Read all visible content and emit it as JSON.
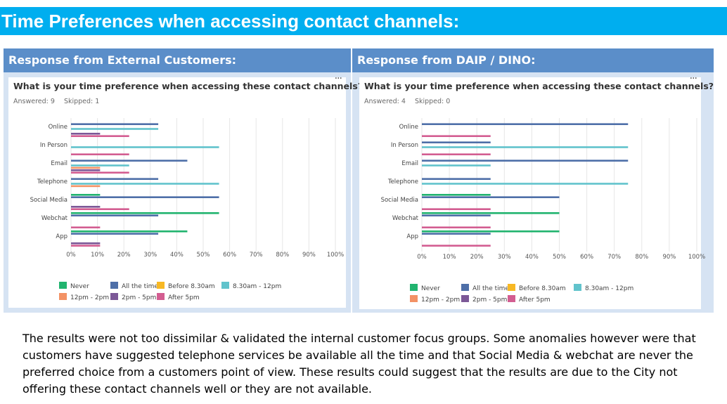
{
  "slide": {
    "title": "Time Preferences when accessing contact channels:",
    "left_header": "Response from External Customers:",
    "right_header": "Response from DAIP / DINO:",
    "summary": "The results were not too dissimilar & validated the internal customer focus groups. Some anomalies however were that customers have suggested telephone services be available all the time and that Social Media & webchat are never the preferred choice from a customers point of view.  These results could suggest that the results are due to the City not offering these contact channels well or they are not available."
  },
  "menu_glyph": "···",
  "chart_data": [
    {
      "type": "bar",
      "orientation": "horizontal",
      "title": "What is your time preference when accessing these contact channels?",
      "answered": "Answered: 9",
      "skipped": "Skipped: 1",
      "categories": [
        "Online",
        "In Person",
        "Email",
        "Telephone",
        "Social Media",
        "Webchat",
        "App"
      ],
      "x_ticks": [
        "0%",
        "10%",
        "20%",
        "30%",
        "40%",
        "50%",
        "60%",
        "70%",
        "80%",
        "90%",
        "100%"
      ],
      "xlim": [
        0,
        100
      ],
      "grid": true,
      "legend_position": "bottom",
      "series": [
        {
          "name": "Never",
          "color": "#21b46f",
          "values": [
            0,
            0,
            0,
            0,
            11,
            56,
            44
          ]
        },
        {
          "name": "All the time",
          "color": "#4e6fa8",
          "values": [
            33,
            0,
            44,
            33,
            56,
            33,
            33
          ]
        },
        {
          "name": "Before 8.30am",
          "color": "#f7b824",
          "values": [
            0,
            0,
            0,
            0,
            0,
            0,
            0
          ]
        },
        {
          "name": "8.30am - 12pm",
          "color": "#61c3cc",
          "values": [
            33,
            56,
            22,
            56,
            0,
            0,
            0
          ]
        },
        {
          "name": "12pm - 2pm",
          "color": "#f39265",
          "values": [
            0,
            0,
            11,
            11,
            0,
            0,
            0
          ]
        },
        {
          "name": "2pm - 5pm",
          "color": "#7c5897",
          "values": [
            11,
            0,
            11,
            0,
            11,
            0,
            11
          ]
        },
        {
          "name": "After 5pm",
          "color": "#d35d91",
          "values": [
            22,
            22,
            22,
            0,
            22,
            11,
            11
          ]
        }
      ]
    },
    {
      "type": "bar",
      "orientation": "horizontal",
      "title": "What is your time preference when accessing these contact channels?",
      "answered": "Answered: 4",
      "skipped": "Skipped: 0",
      "categories": [
        "Online",
        "In Person",
        "Email",
        "Telephone",
        "Social Media",
        "Webchat",
        "App"
      ],
      "x_ticks": [
        "0%",
        "10%",
        "20%",
        "30%",
        "40%",
        "50%",
        "60%",
        "70%",
        "80%",
        "90%",
        "100%"
      ],
      "xlim": [
        0,
        100
      ],
      "grid": true,
      "legend_position": "bottom",
      "series": [
        {
          "name": "Never",
          "color": "#21b46f",
          "values": [
            0,
            0,
            0,
            0,
            25,
            50,
            50
          ]
        },
        {
          "name": "All the time",
          "color": "#4e6fa8",
          "values": [
            75,
            25,
            75,
            25,
            50,
            25,
            25
          ]
        },
        {
          "name": "Before 8.30am",
          "color": "#f7b824",
          "values": [
            0,
            0,
            0,
            0,
            0,
            0,
            0
          ]
        },
        {
          "name": "8.30am - 12pm",
          "color": "#61c3cc",
          "values": [
            0,
            75,
            25,
            75,
            0,
            0,
            0
          ]
        },
        {
          "name": "12pm - 2pm",
          "color": "#f39265",
          "values": [
            0,
            0,
            0,
            0,
            0,
            0,
            0
          ]
        },
        {
          "name": "2pm - 5pm",
          "color": "#7c5897",
          "values": [
            0,
            0,
            0,
            0,
            0,
            0,
            0
          ]
        },
        {
          "name": "After 5pm",
          "color": "#d35d91",
          "values": [
            25,
            25,
            0,
            0,
            25,
            25,
            25
          ]
        }
      ]
    }
  ]
}
